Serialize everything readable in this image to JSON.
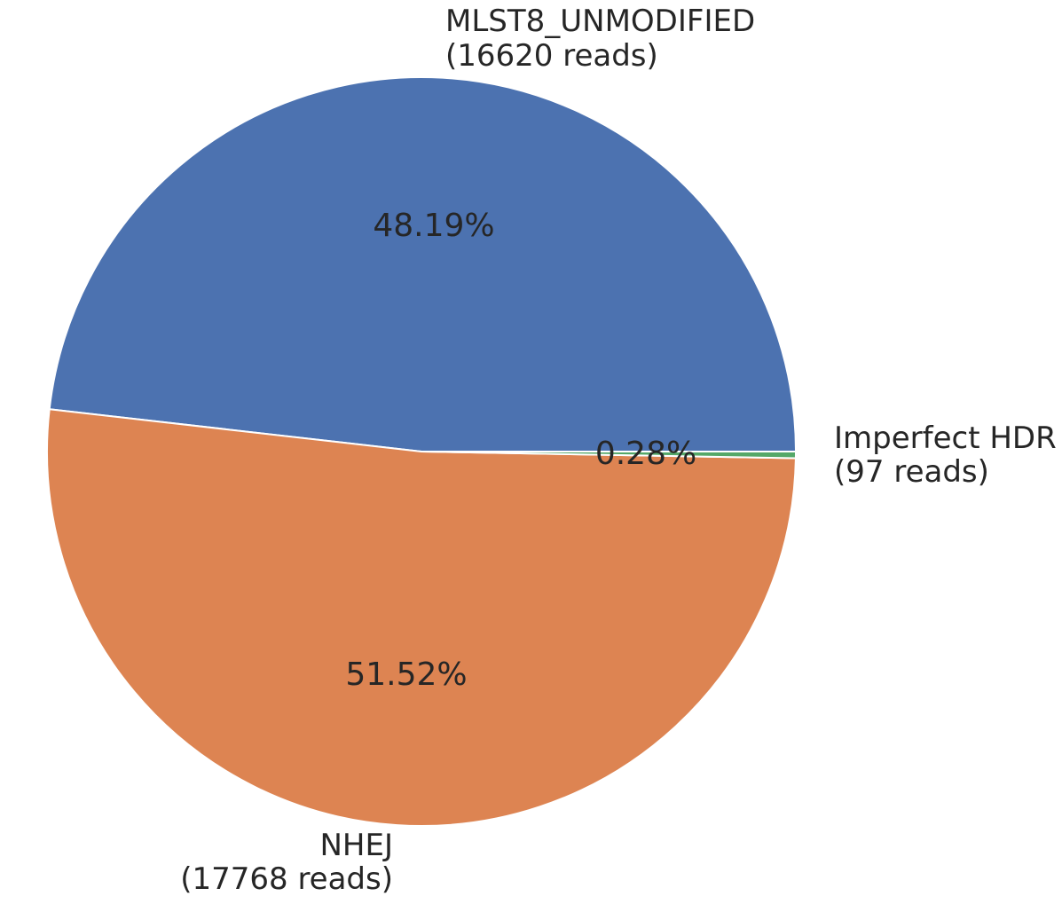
{
  "chart_data": {
    "type": "pie",
    "slices": [
      {
        "label": "MLST8_UNMODIFIED",
        "reads_text": "(16620 reads)",
        "value": 16620,
        "percent_text": "48.19%",
        "color": "#4c72b0"
      },
      {
        "label": "Imperfect HDR",
        "reads_text": "(97 reads)",
        "value": 97,
        "percent_text": "0.28%",
        "color": "#55a868"
      },
      {
        "label": "NHEJ",
        "reads_text": "(17768 reads)",
        "value": 17768,
        "percent_text": "51.52%",
        "color": "#dd8452"
      }
    ]
  }
}
